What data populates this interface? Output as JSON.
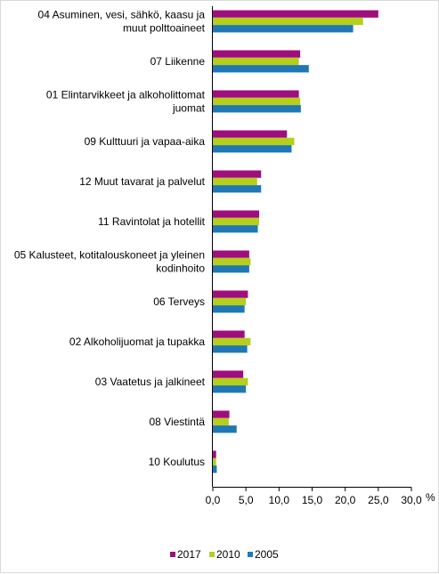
{
  "chart_data": {
    "type": "bar",
    "orientation": "horizontal",
    "categories": [
      [
        "04 Asuminen, vesi, sähkö, kaasu ja",
        "muut polttoaineet"
      ],
      [
        "07 Liikenne"
      ],
      [
        "01 Elintarvikkeet ja alkoholittomat",
        "juomat"
      ],
      [
        "09 Kulttuuri ja vapaa-aika"
      ],
      [
        "12 Muut tavarat ja palvelut"
      ],
      [
        "11 Ravintolat ja hotellit"
      ],
      [
        "05 Kalusteet, kotitalouskoneet ja yleinen",
        "kodinhoito"
      ],
      [
        "06 Terveys"
      ],
      [
        "02 Alkoholijuomat ja tupakka"
      ],
      [
        "03 Vaatetus ja jalkineet"
      ],
      [
        "08 Viestintä"
      ],
      [
        "10 Koulutus"
      ]
    ],
    "series": [
      {
        "name": "2017",
        "color": "#9e0e7d",
        "values": [
          25.0,
          13.2,
          13.0,
          11.2,
          7.3,
          7.0,
          5.5,
          5.3,
          4.8,
          4.6,
          2.5,
          0.5
        ]
      },
      {
        "name": "2010",
        "color": "#b5cf1b",
        "values": [
          22.7,
          13.0,
          13.2,
          12.3,
          6.7,
          7.0,
          5.7,
          5.0,
          5.7,
          5.3,
          2.4,
          0.5
        ]
      },
      {
        "name": "2005",
        "color": "#1f78b4",
        "values": [
          21.2,
          14.5,
          13.3,
          11.9,
          7.3,
          6.8,
          5.5,
          4.8,
          5.2,
          5.0,
          3.6,
          0.6
        ]
      }
    ],
    "xlim": [
      0,
      30
    ],
    "xticks": [
      "0,0",
      "5,0",
      "10,0",
      "15,0",
      "20,0",
      "25,0",
      "30,0"
    ],
    "xunit": "%",
    "grid": false,
    "legend_position": "bottom"
  }
}
